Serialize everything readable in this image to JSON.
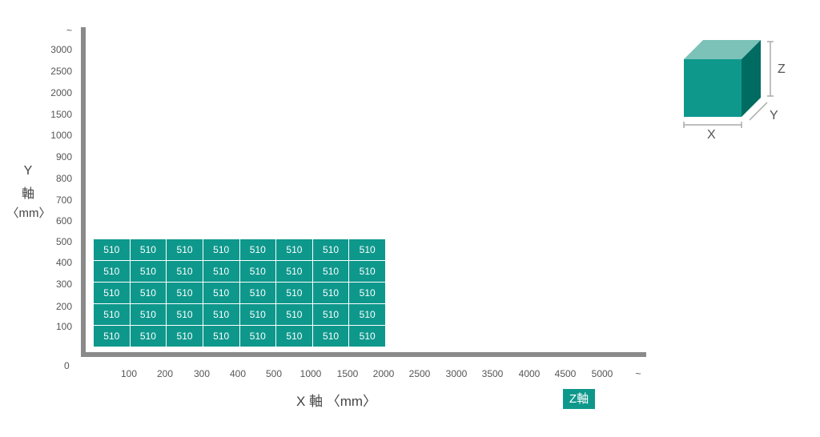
{
  "y_axis": {
    "ticks": [
      "~",
      "3000",
      "2500",
      "2000",
      "1500",
      "1000",
      "900",
      "800",
      "700",
      "600",
      "500",
      "400",
      "300",
      "200",
      "100"
    ],
    "label_line1": "Y",
    "label_line2": "軸",
    "label_line3": "〈mm〉"
  },
  "origin_label": "0",
  "x_axis": {
    "ticks": [
      "100",
      "200",
      "300",
      "400",
      "500",
      "1000",
      "1500",
      "2000",
      "2500",
      "3000",
      "3500",
      "4000",
      "4500",
      "5000",
      "~"
    ],
    "label": "X 軸 〈mm〉"
  },
  "z_badge": "Z軸",
  "grid": {
    "rows": [
      [
        "510",
        "510",
        "510",
        "510",
        "510",
        "510",
        "510",
        "510"
      ],
      [
        "510",
        "510",
        "510",
        "510",
        "510",
        "510",
        "510",
        "510"
      ],
      [
        "510",
        "510",
        "510",
        "510",
        "510",
        "510",
        "510",
        "510"
      ],
      [
        "510",
        "510",
        "510",
        "510",
        "510",
        "510",
        "510",
        "510"
      ],
      [
        "510",
        "510",
        "510",
        "510",
        "510",
        "510",
        "510",
        "510"
      ]
    ]
  },
  "cube": {
    "x_label": "X",
    "y_label": "Y",
    "z_label": "Z",
    "colors": {
      "front": "#0e988c",
      "top": "#7cc2b9",
      "side": "#006b61"
    }
  }
}
